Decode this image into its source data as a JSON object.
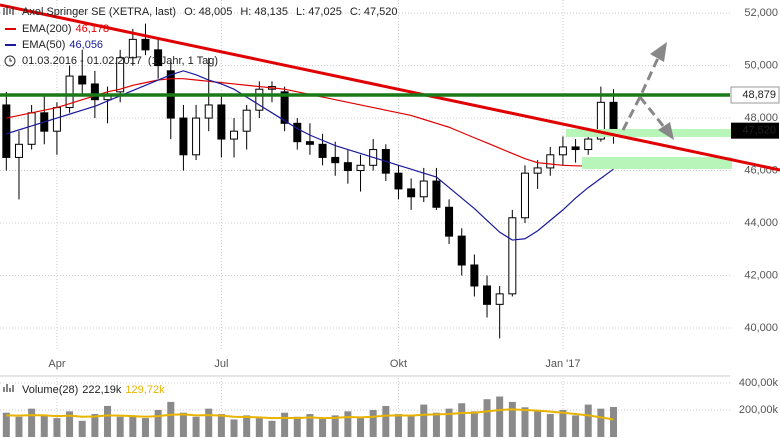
{
  "header": {
    "title": "Axel Springer SE (XETRA, last)",
    "quote": [
      {
        "label": "O:",
        "value": "48,005"
      },
      {
        "label": "H:",
        "value": "48,135"
      },
      {
        "label": "L:",
        "value": "47,025"
      },
      {
        "label": "C:",
        "value": "47,520"
      }
    ],
    "range": "01.03.2016 - 01.02.2017",
    "period": "(1 Jahr, 1 Tag)"
  },
  "chart_data": [
    {
      "type": "candlestick",
      "categories": [
        null,
        null,
        null,
        null,
        "Apr",
        null,
        null,
        null,
        null,
        null,
        null,
        null,
        null,
        null,
        null,
        null,
        null,
        "Jul",
        null,
        null,
        null,
        null,
        null,
        null,
        null,
        null,
        null,
        null,
        null,
        null,
        null,
        "Okt",
        null,
        null,
        null,
        null,
        null,
        null,
        null,
        null,
        null,
        null,
        null,
        null,
        "Jan '17",
        null,
        null,
        null,
        null
      ],
      "open": [
        48500,
        46500,
        47000,
        48200,
        47500,
        48400,
        49600,
        49300,
        48700,
        49000,
        50300,
        51000,
        50600,
        49800,
        48000,
        46600,
        48000,
        48500,
        47200,
        47500,
        48300,
        49100,
        49000,
        47800,
        47100,
        47000,
        46500,
        46300,
        46000,
        46200,
        46800,
        45900,
        45300,
        45000,
        45600,
        44600,
        43500,
        42400,
        41600,
        40900,
        41300,
        44200,
        45900,
        46100,
        46600,
        46900,
        46800,
        47200,
        48600
      ],
      "high": [
        49000,
        47500,
        48500,
        48900,
        48600,
        50000,
        50600,
        49800,
        49200,
        50600,
        51400,
        51600,
        51000,
        50200,
        48500,
        48500,
        50300,
        48900,
        48000,
        48500,
        49400,
        49400,
        49200,
        48000,
        47800,
        47400,
        47100,
        46800,
        46600,
        47200,
        47000,
        46200,
        45700,
        46100,
        46100,
        44900,
        43800,
        42800,
        42000,
        41600,
        44500,
        46200,
        46400,
        46900,
        47300,
        47200,
        47400,
        49200,
        49100
      ],
      "low": [
        46000,
        44900,
        46800,
        47000,
        46600,
        48200,
        48900,
        48000,
        47800,
        48600,
        50000,
        50400,
        49500,
        47200,
        46000,
        46400,
        47500,
        46500,
        46500,
        46800,
        48000,
        48600,
        47500,
        46800,
        46600,
        46200,
        45800,
        45500,
        45200,
        46000,
        45600,
        44900,
        44500,
        44800,
        44500,
        43200,
        42000,
        41200,
        40400,
        39600,
        41200,
        44000,
        45300,
        45800,
        46200,
        46300,
        46600,
        47100,
        47025
      ],
      "close": [
        46500,
        47000,
        48200,
        47500,
        48400,
        49600,
        49300,
        48700,
        48900,
        50300,
        51000,
        50600,
        50000,
        48000,
        46600,
        48000,
        48500,
        47200,
        47500,
        48300,
        49100,
        49200,
        47800,
        47100,
        47000,
        46500,
        46300,
        46000,
        46200,
        46800,
        45900,
        45300,
        45000,
        45600,
        44600,
        43500,
        42400,
        41600,
        40900,
        41300,
        44200,
        45900,
        46100,
        46600,
        46900,
        46800,
        47200,
        48600,
        47520
      ],
      "up_color": "#ffffff",
      "down_color": "#000000",
      "series": [
        {
          "name": "EMA(200)",
          "legend_value": "46,178",
          "color": "#e00000",
          "values": [
            48000,
            48100,
            48200,
            48300,
            48400,
            48550,
            48700,
            48850,
            49000,
            49100,
            49250,
            49350,
            49450,
            49500,
            49500,
            49450,
            49400,
            49350,
            49300,
            49250,
            49200,
            49150,
            49100,
            49000,
            48900,
            48800,
            48700,
            48600,
            48500,
            48400,
            48300,
            48200,
            48100,
            47950,
            47800,
            47650,
            47450,
            47250,
            47050,
            46850,
            46650,
            46450,
            46300,
            46250,
            46200,
            46180,
            46170,
            46175,
            46178
          ]
        },
        {
          "name": "EMA(50)",
          "legend_value": "46,056",
          "color": "#1a1a9a",
          "values": [
            47400,
            47550,
            47700,
            47850,
            48000,
            48150,
            48300,
            48450,
            48650,
            48850,
            49050,
            49250,
            49450,
            49650,
            49800,
            49650,
            49450,
            49300,
            49100,
            48800,
            48500,
            48200,
            47900,
            47600,
            47350,
            47150,
            46950,
            46800,
            46650,
            46500,
            46350,
            46200,
            46050,
            45900,
            45750,
            45350,
            44950,
            44550,
            44100,
            43650,
            43350,
            43400,
            43700,
            44100,
            44500,
            44950,
            45350,
            45700,
            46056
          ]
        }
      ],
      "resistance": {
        "value": 48879,
        "label": "48,879",
        "color": "#1a7a1a"
      },
      "last": {
        "value": 47520,
        "label": "47,520"
      },
      "ylim": [
        39160,
        52500
      ],
      "yticks": [
        {
          "value": 40000,
          "label": "40,000"
        },
        {
          "value": 42000,
          "label": "42,000"
        },
        {
          "value": 44000,
          "label": "44,000"
        },
        {
          "value": 46000,
          "label": "46,000"
        },
        {
          "value": 48000,
          "label": "48,000"
        },
        {
          "value": 50000,
          "label": "50,000"
        },
        {
          "value": 52000,
          "label": "52,000"
        }
      ],
      "grid": true
    },
    {
      "type": "bar",
      "series": [
        {
          "name": "Volume(28)",
          "legend_value": "222,19k",
          "color": "#8a8a8a",
          "values": [
            180000,
            150000,
            210000,
            160000,
            140000,
            190000,
            120000,
            170000,
            230000,
            150000,
            160000,
            140000,
            200000,
            260000,
            180000,
            150000,
            210000,
            170000,
            130000,
            160000,
            140000,
            120000,
            180000,
            150000,
            170000,
            140000,
            160000,
            190000,
            150000,
            200000,
            230000,
            170000,
            160000,
            240000,
            180000,
            210000,
            250000,
            190000,
            280000,
            300000,
            260000,
            220000,
            190000,
            170000,
            200000,
            160000,
            240000,
            210000,
            222190
          ]
        },
        {
          "legend_value": "129,72k",
          "color": "#e8b400",
          "values": [
            160000,
            158000,
            162000,
            160000,
            155000,
            158000,
            150000,
            152000,
            160000,
            158000,
            155000,
            150000,
            155000,
            165000,
            168000,
            160000,
            162000,
            158000,
            150000,
            148000,
            145000,
            140000,
            142000,
            140000,
            145000,
            140000,
            142000,
            148000,
            145000,
            150000,
            158000,
            160000,
            158000,
            165000,
            168000,
            170000,
            178000,
            180000,
            190000,
            200000,
            205000,
            200000,
            195000,
            188000,
            180000,
            170000,
            160000,
            145000,
            129720
          ]
        }
      ],
      "ylim": [
        0,
        437000
      ],
      "yticks": [
        {
          "value": 200000,
          "label": "200,00k"
        },
        {
          "value": 400000,
          "label": "400,00k"
        }
      ],
      "grid": true
    }
  ]
}
